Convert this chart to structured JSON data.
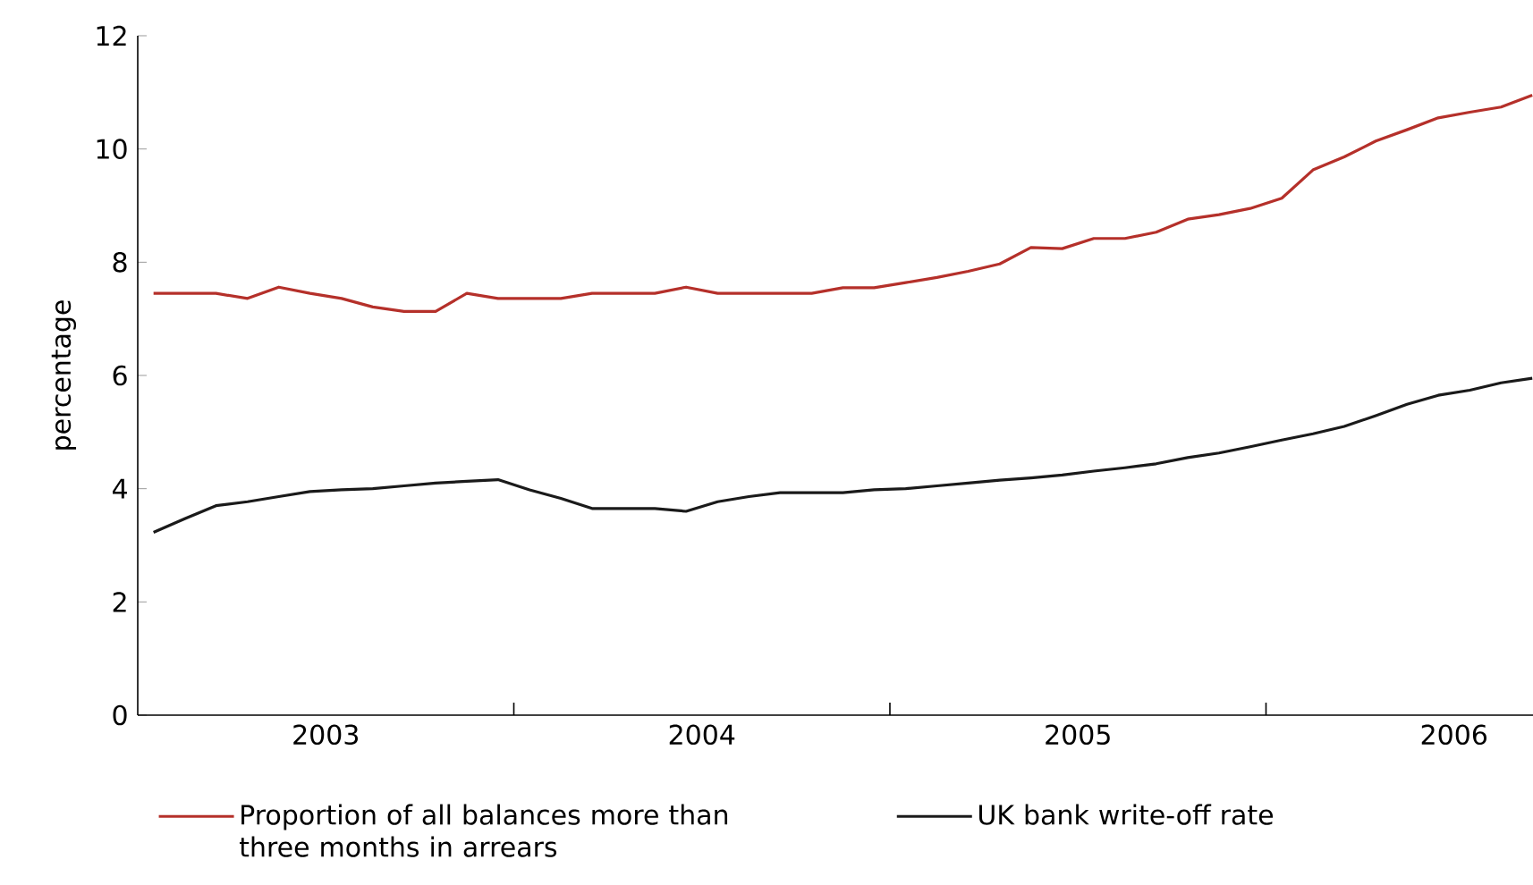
{
  "chart_data": {
    "type": "line",
    "ylabel": "percentage",
    "xlim": [
      2003,
      2006.71
    ],
    "ylim": [
      0,
      12
    ],
    "yticks": [
      0,
      2,
      4,
      6,
      8,
      10,
      12
    ],
    "xticks": [
      {
        "value": 2003.5,
        "label": "2003"
      },
      {
        "value": 2004,
        "label": null
      },
      {
        "value": 2004.5,
        "label": "2004"
      },
      {
        "value": 2005,
        "label": null
      },
      {
        "value": 2005.5,
        "label": "2005"
      },
      {
        "value": 2006,
        "label": null
      },
      {
        "value": 2006.5,
        "label": "2006"
      }
    ],
    "x": [
      2003.042,
      2003.125,
      2003.208,
      2003.292,
      2003.375,
      2003.458,
      2003.542,
      2003.625,
      2003.708,
      2003.792,
      2003.875,
      2003.958,
      2004.042,
      2004.125,
      2004.208,
      2004.292,
      2004.375,
      2004.458,
      2004.542,
      2004.625,
      2004.708,
      2004.792,
      2004.875,
      2004.958,
      2005.042,
      2005.125,
      2005.208,
      2005.292,
      2005.375,
      2005.458,
      2005.542,
      2005.625,
      2005.708,
      2005.792,
      2005.875,
      2005.958,
      2006.042,
      2006.125,
      2006.208,
      2006.292,
      2006.375,
      2006.458,
      2006.542,
      2006.625,
      2006.708
    ],
    "series": [
      {
        "name": "Proportion of all balances more than three months in arrears",
        "color": "#b5302a",
        "values": [
          7.45,
          7.45,
          7.45,
          7.36,
          7.56,
          7.45,
          7.36,
          7.21,
          7.13,
          7.13,
          7.45,
          7.36,
          7.36,
          7.36,
          7.45,
          7.45,
          7.45,
          7.56,
          7.45,
          7.45,
          7.45,
          7.45,
          7.55,
          7.55,
          7.64,
          7.73,
          7.84,
          7.97,
          8.26,
          8.24,
          8.42,
          8.42,
          8.53,
          8.76,
          8.84,
          8.95,
          9.13,
          9.63,
          9.86,
          10.14,
          10.34,
          10.55,
          10.65,
          10.74,
          10.95
        ]
      },
      {
        "name": "UK bank write-off rate",
        "color": "#1a1a1a",
        "values": [
          3.23,
          3.47,
          3.7,
          3.77,
          3.86,
          3.95,
          3.98,
          4.0,
          4.05,
          4.1,
          4.13,
          4.16,
          3.98,
          3.83,
          3.65,
          3.65,
          3.65,
          3.6,
          3.77,
          3.86,
          3.93,
          3.93,
          3.93,
          3.98,
          4.0,
          4.05,
          4.1,
          4.15,
          4.19,
          4.24,
          4.31,
          4.37,
          4.44,
          4.55,
          4.63,
          4.74,
          4.86,
          4.97,
          5.1,
          5.29,
          5.49,
          5.65,
          5.74,
          5.87,
          5.95
        ]
      }
    ],
    "legend": "bottom",
    "grid": false,
    "marker": "none",
    "line_style": "solid"
  }
}
